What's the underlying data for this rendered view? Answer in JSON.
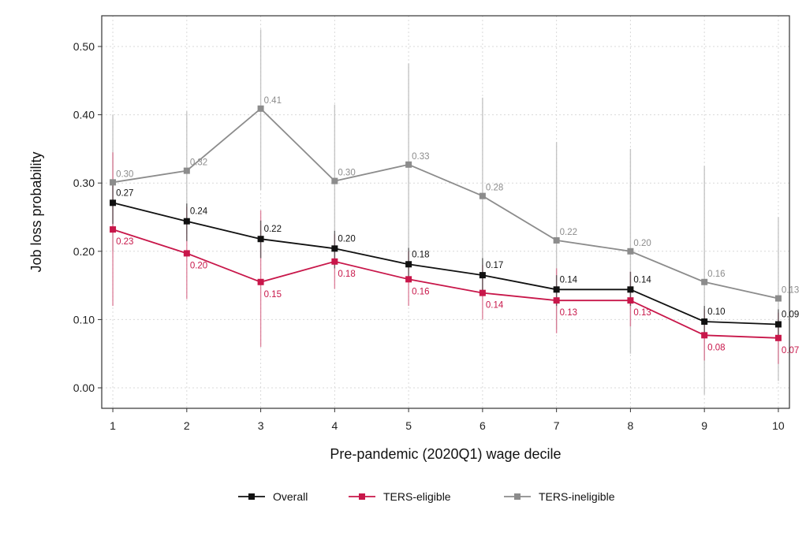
{
  "chart_data": {
    "type": "line",
    "xlabel": "Pre-pandemic (2020Q1) wage decile",
    "ylabel": "Job loss probability",
    "x": [
      1,
      2,
      3,
      4,
      5,
      6,
      7,
      8,
      9,
      10
    ],
    "x_tick_labels": [
      "1",
      "2",
      "3",
      "4",
      "5",
      "6",
      "7",
      "8",
      "9",
      "10"
    ],
    "y_ticks": [
      0.0,
      0.1,
      0.2,
      0.3,
      0.4,
      0.5
    ],
    "y_tick_labels": [
      "0.00",
      "0.10",
      "0.20",
      "0.30",
      "0.40",
      "0.50"
    ],
    "ylim": [
      -0.03,
      0.545
    ],
    "grid": true,
    "legend_position": "bottom",
    "series": [
      {
        "name": "Overall",
        "color": "#111111",
        "values": [
          0.271,
          0.244,
          0.218,
          0.204,
          0.181,
          0.165,
          0.144,
          0.144,
          0.097,
          0.093
        ],
        "labels": [
          "0.27",
          "0.24",
          "0.22",
          "0.20",
          "0.18",
          "0.17",
          "0.14",
          "0.14",
          "0.10",
          "0.09"
        ],
        "ci_low": [
          0.24,
          0.215,
          0.19,
          0.175,
          0.155,
          0.14,
          0.12,
          0.12,
          0.075,
          0.07
        ],
        "ci_high": [
          0.3,
          0.27,
          0.245,
          0.23,
          0.205,
          0.19,
          0.165,
          0.17,
          0.12,
          0.115
        ]
      },
      {
        "name": "TERS-eligible",
        "color": "#c8174a",
        "values": [
          0.232,
          0.197,
          0.155,
          0.185,
          0.159,
          0.139,
          0.128,
          0.128,
          0.077,
          0.073
        ],
        "labels": [
          "0.23",
          "0.20",
          "0.15",
          "0.18",
          "0.16",
          "0.14",
          "0.13",
          "0.13",
          "0.08",
          "0.07"
        ],
        "ci_low": [
          0.12,
          0.13,
          0.06,
          0.145,
          0.12,
          0.1,
          0.08,
          0.09,
          0.04,
          0.035
        ],
        "ci_high": [
          0.345,
          0.265,
          0.26,
          0.225,
          0.2,
          0.18,
          0.175,
          0.17,
          0.115,
          0.11
        ]
      },
      {
        "name": "TERS-ineligible",
        "color": "#8c8c8c",
        "values": [
          0.301,
          0.318,
          0.409,
          0.303,
          0.327,
          0.281,
          0.216,
          0.2,
          0.155,
          0.131
        ],
        "labels": [
          "0.30",
          "0.32",
          "0.41",
          "0.30",
          "0.33",
          "0.28",
          "0.22",
          "0.20",
          "0.16",
          "0.13"
        ],
        "ci_low": [
          0.2,
          0.225,
          0.29,
          0.19,
          0.18,
          0.14,
          0.085,
          0.05,
          -0.01,
          0.01
        ],
        "ci_high": [
          0.4,
          0.405,
          0.525,
          0.415,
          0.475,
          0.425,
          0.36,
          0.35,
          0.325,
          0.25
        ]
      }
    ]
  }
}
